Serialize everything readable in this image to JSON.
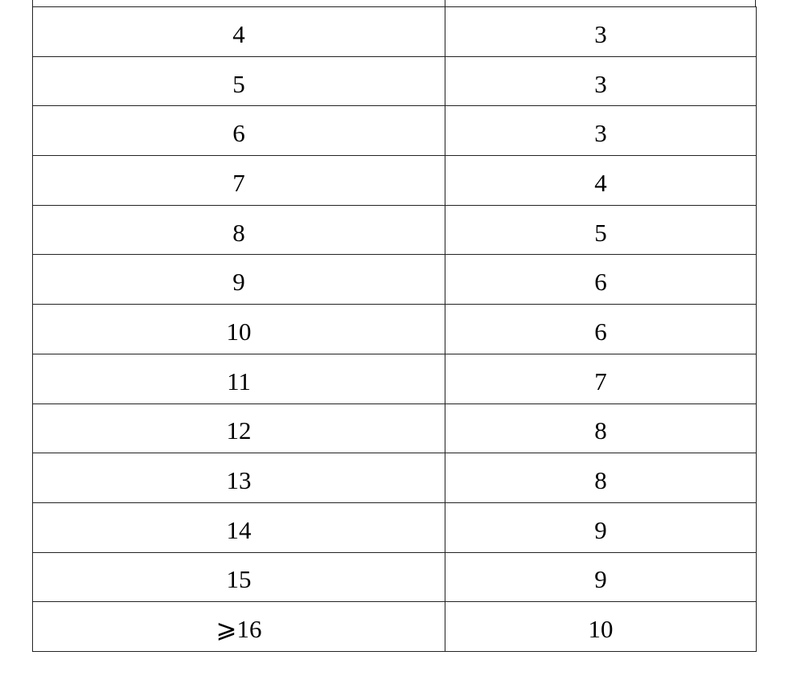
{
  "table": {
    "rows": [
      [
        "4",
        "3"
      ],
      [
        "5",
        "3"
      ],
      [
        "6",
        "3"
      ],
      [
        "7",
        "4"
      ],
      [
        "8",
        "5"
      ],
      [
        "9",
        "6"
      ],
      [
        "10",
        "6"
      ],
      [
        "11",
        "7"
      ],
      [
        "12",
        "8"
      ],
      [
        "13",
        "8"
      ],
      [
        "14",
        "9"
      ],
      [
        "15",
        "9"
      ],
      [
        "⩾16",
        "10"
      ]
    ]
  }
}
